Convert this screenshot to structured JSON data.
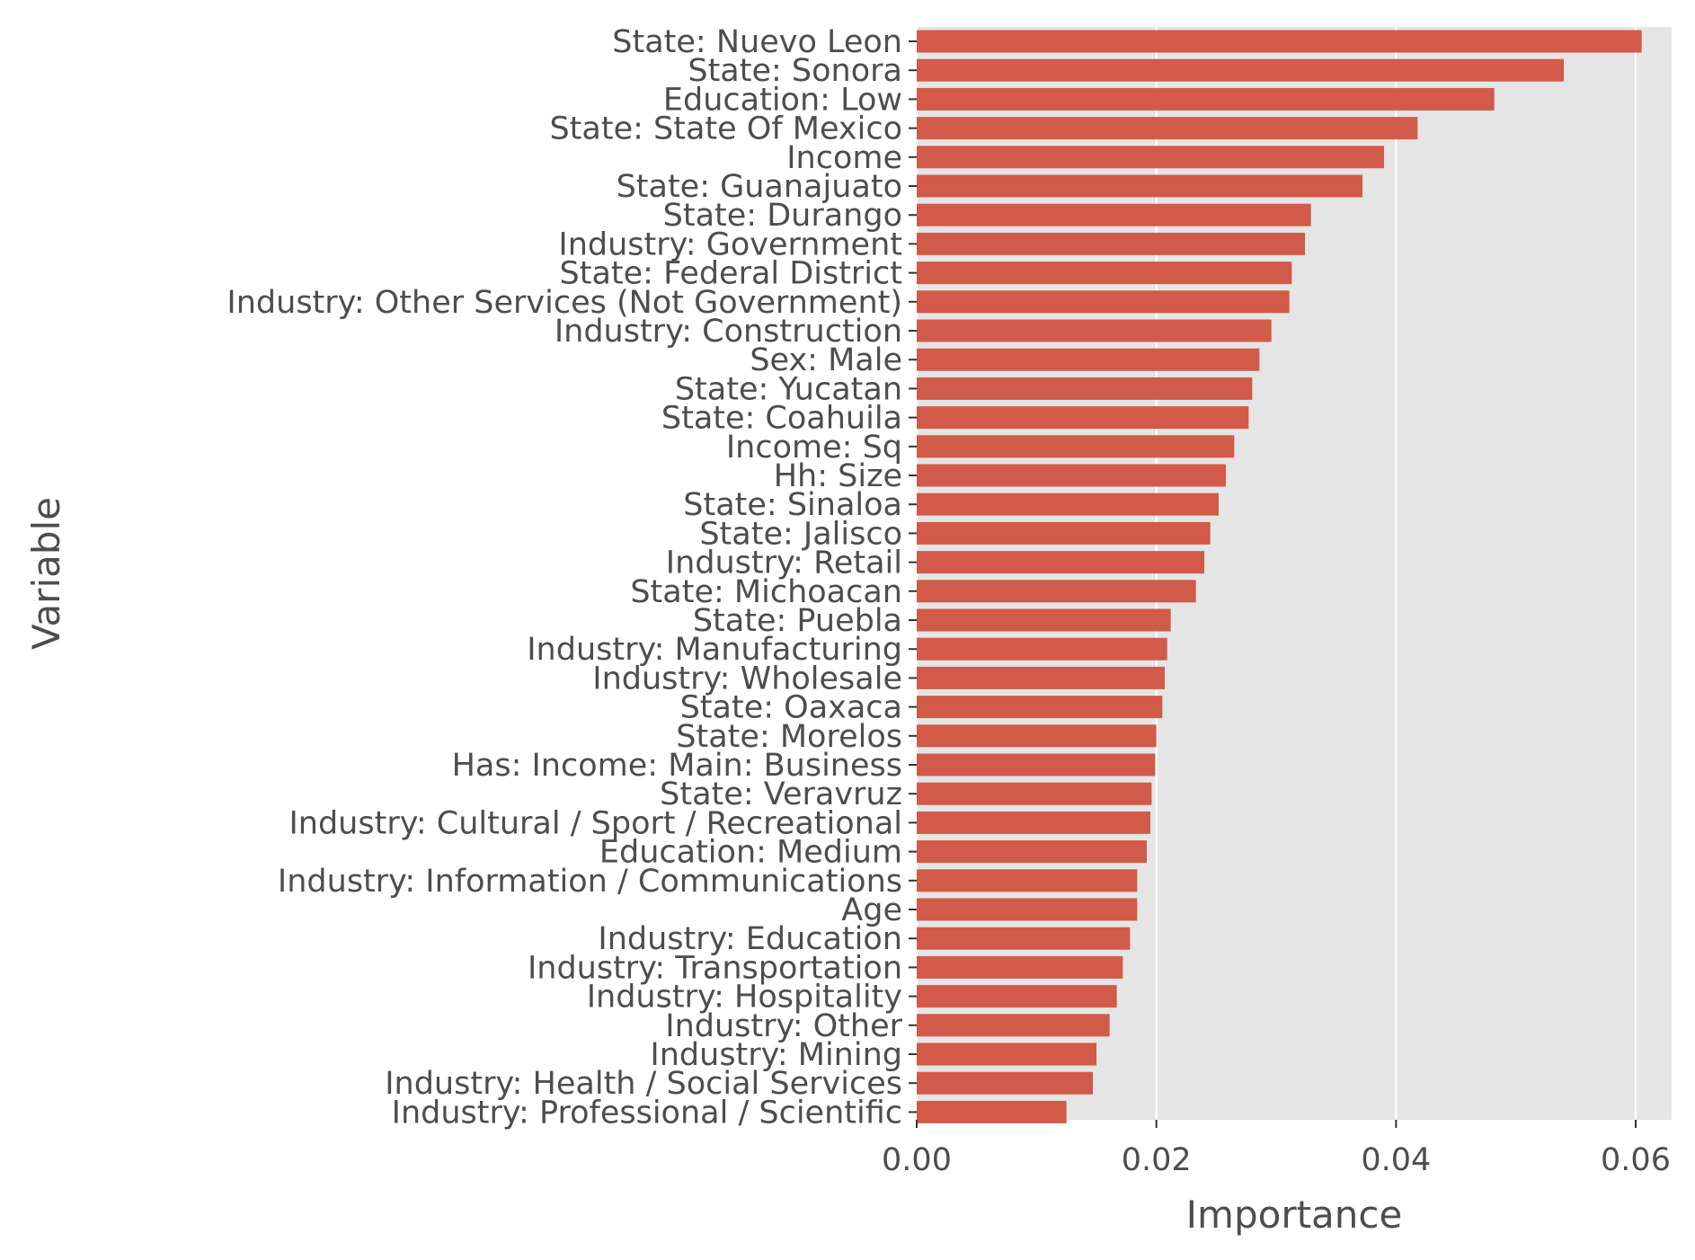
{
  "chart_data": {
    "type": "bar",
    "orientation": "horizontal",
    "xlabel": "Importance",
    "ylabel": "Variable",
    "xlim": [
      0,
      0.063
    ],
    "xticks": [
      0.0,
      0.02,
      0.04,
      0.06
    ],
    "xtick_labels": [
      "0.00",
      "0.02",
      "0.04",
      "0.06"
    ],
    "grid": "vertical, white on gray panel",
    "colors": {
      "bar": "#D15A48",
      "panel": "#E5E5E5",
      "grid": "#FFFFFF",
      "text": "#4D4D4D"
    },
    "categories": [
      "State: Nuevo Leon",
      "State: Sonora",
      "Education: Low",
      "State: State Of Mexico",
      "Income",
      "State: Guanajuato",
      "State: Durango",
      "Industry: Government",
      "State: Federal District",
      "Industry: Other Services (Not Government)",
      "Industry: Construction",
      "Sex: Male",
      "State: Yucatan",
      "State: Coahuila",
      "Income: Sq",
      "Hh: Size",
      "State: Sinaloa",
      "State: Jalisco",
      "Industry: Retail",
      "State: Michoacan",
      "State: Puebla",
      "Industry: Manufacturing",
      "Industry: Wholesale",
      "State: Oaxaca",
      "State: Morelos",
      "Has: Income: Main: Business",
      "State: Veravruz",
      "Industry: Cultural / Sport / Recreational",
      "Education: Medium",
      "Industry: Information / Communications",
      "Age",
      "Industry: Education",
      "Industry: Transportation",
      "Industry: Hospitality",
      "Industry: Other",
      "Industry: Mining",
      "Industry: Health / Social Services",
      "Industry: Professional / Scientific"
    ],
    "values": [
      0.0605,
      0.054,
      0.0482,
      0.0418,
      0.039,
      0.0372,
      0.0329,
      0.0324,
      0.0313,
      0.0311,
      0.0296,
      0.0286,
      0.028,
      0.0277,
      0.0265,
      0.0258,
      0.0252,
      0.0245,
      0.024,
      0.0233,
      0.0212,
      0.0209,
      0.0207,
      0.0205,
      0.02,
      0.0199,
      0.0196,
      0.0195,
      0.0192,
      0.0184,
      0.0184,
      0.0178,
      0.0172,
      0.0167,
      0.0161,
      0.015,
      0.0147,
      0.0125
    ]
  }
}
